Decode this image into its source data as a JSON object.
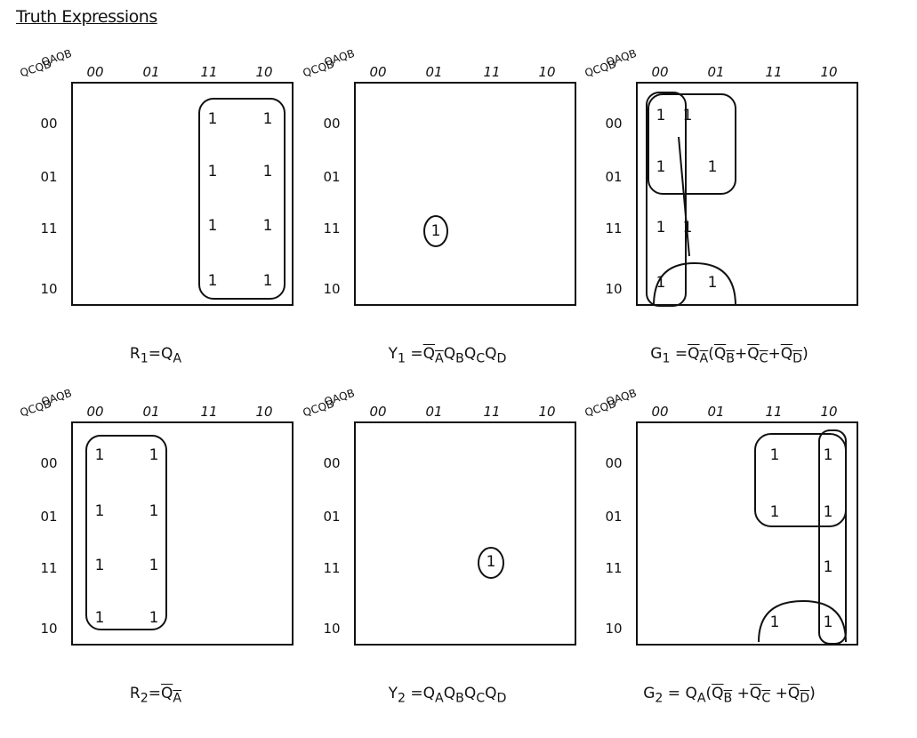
{
  "title": "Truth Expressions",
  "col_labels": [
    "00",
    "01",
    "11",
    "10"
  ],
  "row_labels": [
    "00",
    "01",
    "11",
    "10"
  ],
  "corner_top": "QAQB",
  "corner_left": "QCQD",
  "one": "1",
  "maps": [
    {
      "expr": "R1=QA"
    },
    {
      "expr": "Y1=QAQBQCQD"
    },
    {
      "expr": "G1=QA(QB+QC+QD)"
    },
    {
      "expr": "R2=QA"
    },
    {
      "expr": "Y2=QAQBQCQD"
    },
    {
      "expr": "G2=QA(QB+QC+QD)"
    }
  ]
}
